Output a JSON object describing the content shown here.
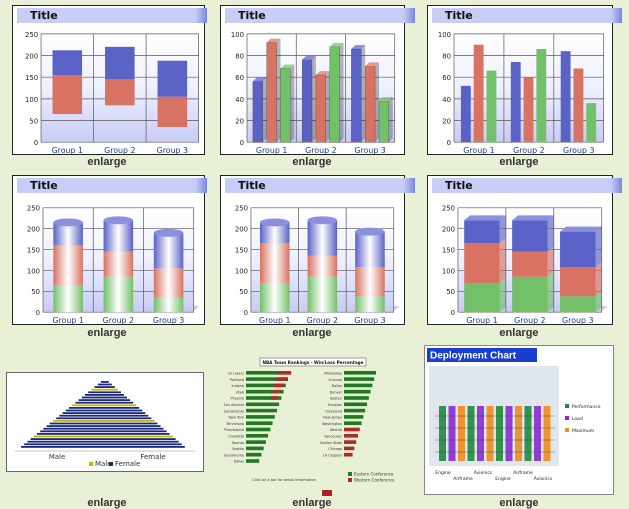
{
  "colors": {
    "blue": "#5a62c6",
    "red": "#d87262",
    "green": "#72c067",
    "bg": "#e8f0d6"
  },
  "enlarge_label": "enlarge",
  "groups": [
    "Group 1",
    "Group 2",
    "Group 3"
  ],
  "yticks_250": [
    "250",
    "200",
    "150",
    "100",
    "50",
    "0"
  ],
  "yticks_100": [
    "100",
    "80",
    "60",
    "40",
    "20",
    "0"
  ],
  "cards": [
    {
      "title": "Title"
    },
    {
      "title": "Title"
    },
    {
      "title": "Title"
    },
    {
      "title": "Title"
    },
    {
      "title": "Title"
    },
    {
      "title": "Title"
    }
  ],
  "chart_data": [
    {
      "type": "bar",
      "title": "Title",
      "chart": "floating stacked",
      "categories": [
        "Group 1",
        "Group 2",
        "Group 3"
      ],
      "series": [
        {
          "values": [
            [
              65,
              155
            ],
            [
              85,
              145
            ],
            [
              35,
              105
            ]
          ]
        },
        {
          "values": [
            [
              155,
              212
            ],
            [
              145,
              220
            ],
            [
              105,
              188
            ]
          ]
        }
      ],
      "ylim": [
        0,
        250
      ]
    },
    {
      "type": "bar",
      "title": "Title",
      "chart": "3d clustered",
      "categories": [
        "Group 1",
        "Group 2",
        "Group 3"
      ],
      "series": [
        {
          "values": [
            56,
            76,
            86
          ]
        },
        {
          "values": [
            92,
            62,
            70
          ]
        },
        {
          "values": [
            68,
            88,
            38
          ]
        }
      ],
      "ylim": [
        0,
        100
      ]
    },
    {
      "type": "bar",
      "title": "Title",
      "chart": "clustered",
      "categories": [
        "Group 1",
        "Group 2",
        "Group 3"
      ],
      "series": [
        {
          "values": [
            52,
            74,
            84
          ]
        },
        {
          "values": [
            90,
            60,
            68
          ]
        },
        {
          "values": [
            66,
            86,
            36
          ]
        }
      ],
      "ylim": [
        0,
        100
      ]
    },
    {
      "type": "bar",
      "title": "Title",
      "chart": "stacked cylinder",
      "categories": [
        "Group 1",
        "Group 2",
        "Group 3"
      ],
      "series": [
        {
          "values": [
            65,
            85,
            35
          ]
        },
        {
          "values": [
            95,
            60,
            70
          ]
        },
        {
          "values": [
            55,
            75,
            85
          ]
        }
      ],
      "ylim": [
        0,
        250
      ]
    },
    {
      "type": "bar",
      "title": "Title",
      "chart": "stacked cylinder",
      "categories": [
        "Group 1",
        "Group 2",
        "Group 3"
      ],
      "series": [
        {
          "values": [
            70,
            85,
            38
          ]
        },
        {
          "values": [
            95,
            50,
            70
          ]
        },
        {
          "values": [
            50,
            85,
            85
          ]
        }
      ],
      "ylim": [
        0,
        250
      ]
    },
    {
      "type": "bar",
      "title": "Title",
      "chart": "stacked 3d box",
      "categories": [
        "Group 1",
        "Group 2",
        "Group 3"
      ],
      "series": [
        {
          "values": [
            70,
            85,
            38
          ]
        },
        {
          "values": [
            95,
            60,
            70
          ]
        },
        {
          "values": [
            55,
            75,
            85
          ]
        }
      ],
      "ylim": [
        0,
        250
      ]
    }
  ],
  "thumb_nba": {
    "title": "NBA Team Rankings - Win/Loss Percentage",
    "footer": "Click on a bar for detail information",
    "legend": [
      "Eastern Conference",
      "Western Conference"
    ],
    "west": [
      "LA Lakers",
      "Portland",
      "Indiana",
      "Utah",
      "Phoenix",
      "San Antonio",
      "Sacramento",
      "New York",
      "Minnesota",
      "Philadelphia",
      "Charlotte",
      "Toronto",
      "Seattle",
      "Sacramento",
      "Dallas"
    ],
    "east": [
      "Milwaukee",
      "Orlando",
      "Dallas",
      "Denver",
      "Boston",
      "Houston",
      "Cleveland",
      "New Jersey",
      "Washington",
      "Atlanta",
      "Vancouver",
      "Golden State",
      "Chicago",
      "LA Clippers"
    ]
  },
  "thumb_pyramid": {
    "legend": [
      "Male",
      "Female"
    ],
    "axis_left": "Male",
    "axis_right": "Female"
  },
  "thumb_deploy": {
    "title": "Deployment Chart",
    "legend": [
      "Performance",
      "Load",
      "Maximum"
    ],
    "categories": [
      "Engine",
      "Airframe",
      "Avionics",
      "Engine",
      "Airframe",
      "Avionics"
    ]
  }
}
